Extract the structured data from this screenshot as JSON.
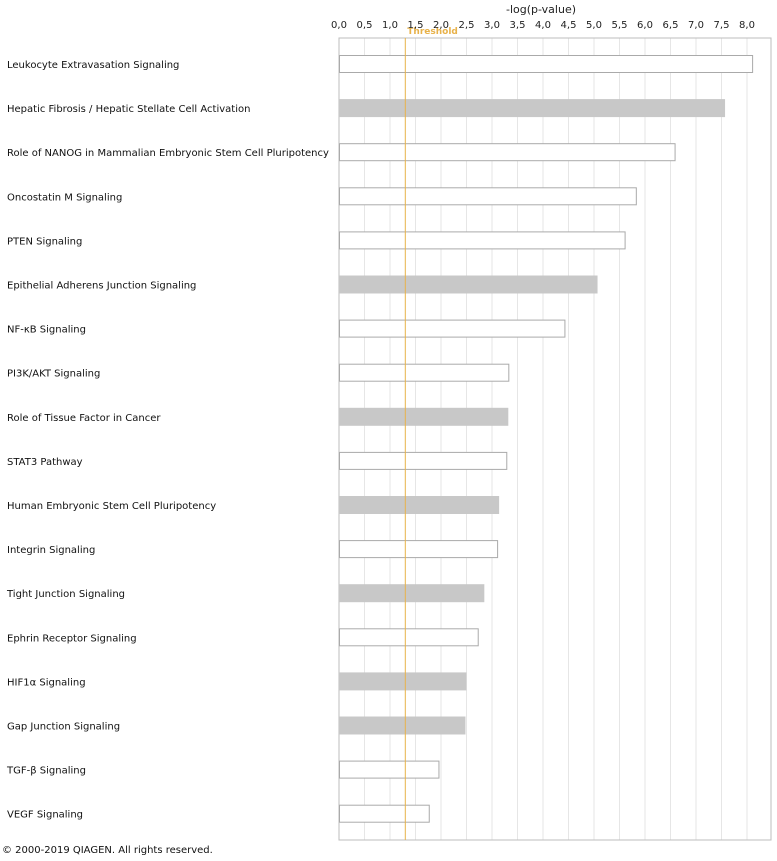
{
  "chart_data": {
    "type": "bar",
    "orientation": "horizontal",
    "xlabel": "-log(p-value)",
    "xlim": [
      0,
      8.2
    ],
    "ticks": [
      "0,0",
      "0,5",
      "1,0",
      "1,5",
      "2,0",
      "2,5",
      "3,0",
      "3,5",
      "4,0",
      "4,5",
      "5,0",
      "5,5",
      "6,0",
      "6,5",
      "7,0",
      "7,5",
      "8,0"
    ],
    "threshold": {
      "value": 1.3,
      "label": "Threshold"
    },
    "grid": true,
    "categories": [
      "Leukocyte Extravasation Signaling",
      "Hepatic Fibrosis / Hepatic Stellate Cell Activation",
      "Role of NANOG in Mammalian Embryonic Stem Cell Pluripotency",
      "Oncostatin M Signaling",
      "PTEN Signaling",
      "Epithelial Adherens Junction Signaling",
      "NF-κB Signaling",
      "PI3K/AKT Signaling",
      "Role of Tissue Factor in Cancer",
      "STAT3 Pathway",
      "Human Embryonic Stem Cell Pluripotency",
      "Integrin Signaling",
      "Tight Junction Signaling",
      "Ephrin Receptor Signaling",
      "HIF1α Signaling",
      "Gap Junction Signaling",
      "TGF-β Signaling",
      "VEGF Signaling"
    ],
    "values": [
      8.1,
      7.55,
      6.58,
      5.82,
      5.6,
      5.05,
      4.42,
      3.32,
      3.3,
      3.28,
      3.12,
      3.1,
      2.83,
      2.72,
      2.48,
      2.46,
      1.95,
      1.76
    ],
    "filled": [
      false,
      true,
      false,
      false,
      false,
      true,
      false,
      false,
      true,
      false,
      true,
      false,
      true,
      false,
      true,
      true,
      false,
      false
    ]
  },
  "colors": {
    "bar_filled": "#c8c8c8",
    "bar_outline": "#aaaaaa",
    "grid": "#e6e6e6",
    "threshold": "#e8b24a"
  },
  "footer": {
    "copyright": "© 2000-2019 QIAGEN. All rights reserved."
  }
}
